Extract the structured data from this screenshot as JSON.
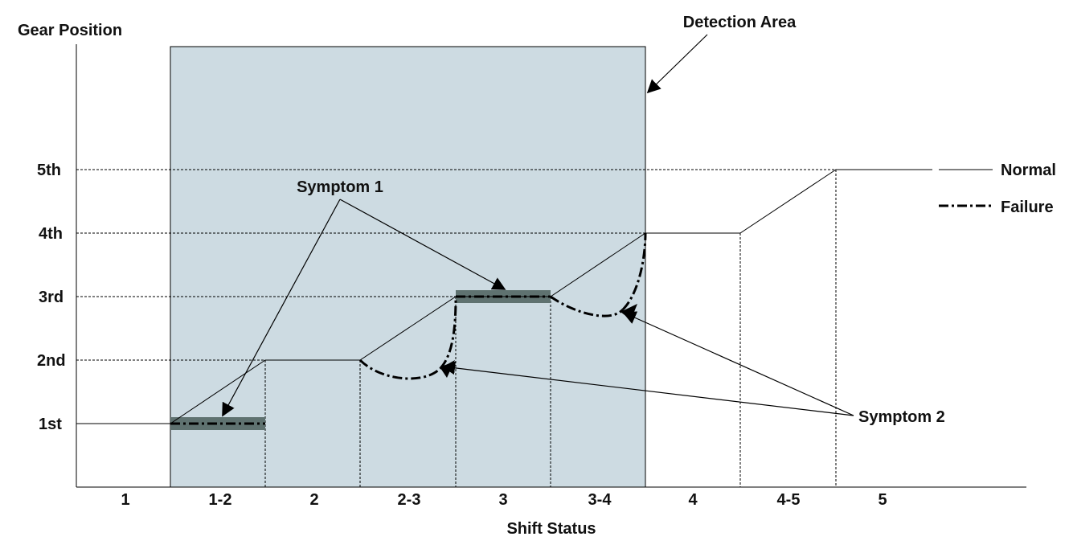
{
  "axis": {
    "y_title": "Gear Position",
    "x_title": "Shift Status",
    "y_levels": [
      "1st",
      "2nd",
      "3rd",
      "4th",
      "5th"
    ],
    "x_states": [
      "1",
      "1-2",
      "2",
      "2-3",
      "3",
      "3-4",
      "4",
      "4-5",
      "5"
    ]
  },
  "annotations": {
    "detection_area": "Detection Area",
    "symptom1": "Symptom 1",
    "symptom2": "Symptom 2"
  },
  "legend": {
    "normal": "Normal",
    "failure": "Failure"
  },
  "colors": {
    "detection_area_fill": "#cddbe2",
    "symptom_bar": "#5f7270",
    "line": "#000000"
  }
}
